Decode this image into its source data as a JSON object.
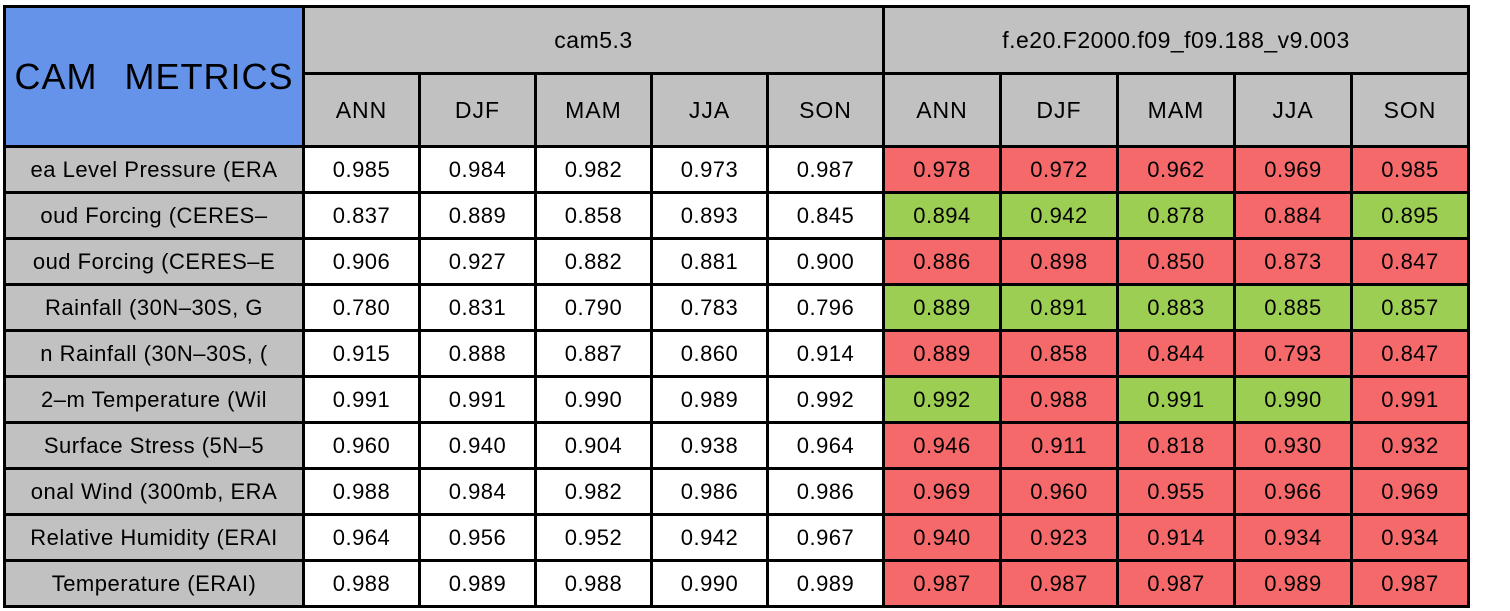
{
  "colors": {
    "blue": "#6593EA",
    "gray": "#C1C1C1",
    "red": "#F5696B",
    "green": "#9CCE53",
    "border": "#000000",
    "white": "#FFFFFF"
  },
  "chart_data": {
    "type": "table",
    "title": "CAM METRICS",
    "column_groups": [
      "cam5.3",
      "f.e20.F2000.f09_f09.188_v9.003"
    ],
    "season_columns": [
      "ANN",
      "DJF",
      "MAM",
      "JJA",
      "SON"
    ],
    "highlight_colors": {
      "red": "#F5696B",
      "green": "#9CCE53"
    },
    "rows": [
      {
        "label": "ea Level Pressure (ERA",
        "cam53": [
          "0.985",
          "0.984",
          "0.982",
          "0.973",
          "0.987"
        ],
        "exp": [
          {
            "v": "0.978",
            "c": "red"
          },
          {
            "v": "0.972",
            "c": "red"
          },
          {
            "v": "0.962",
            "c": "red"
          },
          {
            "v": "0.969",
            "c": "red"
          },
          {
            "v": "0.985",
            "c": "red"
          }
        ]
      },
      {
        "label": "oud Forcing (CERES–",
        "cam53": [
          "0.837",
          "0.889",
          "0.858",
          "0.893",
          "0.845"
        ],
        "exp": [
          {
            "v": "0.894",
            "c": "green"
          },
          {
            "v": "0.942",
            "c": "green"
          },
          {
            "v": "0.878",
            "c": "green"
          },
          {
            "v": "0.884",
            "c": "red"
          },
          {
            "v": "0.895",
            "c": "green"
          }
        ]
      },
      {
        "label": "oud Forcing (CERES–E",
        "cam53": [
          "0.906",
          "0.927",
          "0.882",
          "0.881",
          "0.900"
        ],
        "exp": [
          {
            "v": "0.886",
            "c": "red"
          },
          {
            "v": "0.898",
            "c": "red"
          },
          {
            "v": "0.850",
            "c": "red"
          },
          {
            "v": "0.873",
            "c": "red"
          },
          {
            "v": "0.847",
            "c": "red"
          }
        ]
      },
      {
        "label": "Rainfall (30N–30S, G",
        "cam53": [
          "0.780",
          "0.831",
          "0.790",
          "0.783",
          "0.796"
        ],
        "exp": [
          {
            "v": "0.889",
            "c": "green"
          },
          {
            "v": "0.891",
            "c": "green"
          },
          {
            "v": "0.883",
            "c": "green"
          },
          {
            "v": "0.885",
            "c": "green"
          },
          {
            "v": "0.857",
            "c": "green"
          }
        ]
      },
      {
        "label": "n Rainfall (30N–30S, (",
        "cam53": [
          "0.915",
          "0.888",
          "0.887",
          "0.860",
          "0.914"
        ],
        "exp": [
          {
            "v": "0.889",
            "c": "red"
          },
          {
            "v": "0.858",
            "c": "red"
          },
          {
            "v": "0.844",
            "c": "red"
          },
          {
            "v": "0.793",
            "c": "red"
          },
          {
            "v": "0.847",
            "c": "red"
          }
        ]
      },
      {
        "label": "2–m Temperature (Wil",
        "cam53": [
          "0.991",
          "0.991",
          "0.990",
          "0.989",
          "0.992"
        ],
        "exp": [
          {
            "v": "0.992",
            "c": "green"
          },
          {
            "v": "0.988",
            "c": "red"
          },
          {
            "v": "0.991",
            "c": "green"
          },
          {
            "v": "0.990",
            "c": "green"
          },
          {
            "v": "0.991",
            "c": "red"
          }
        ]
      },
      {
        "label": "Surface Stress (5N–5",
        "cam53": [
          "0.960",
          "0.940",
          "0.904",
          "0.938",
          "0.964"
        ],
        "exp": [
          {
            "v": "0.946",
            "c": "red"
          },
          {
            "v": "0.911",
            "c": "red"
          },
          {
            "v": "0.818",
            "c": "red"
          },
          {
            "v": "0.930",
            "c": "red"
          },
          {
            "v": "0.932",
            "c": "red"
          }
        ]
      },
      {
        "label": "onal Wind (300mb, ERA",
        "cam53": [
          "0.988",
          "0.984",
          "0.982",
          "0.986",
          "0.986"
        ],
        "exp": [
          {
            "v": "0.969",
            "c": "red"
          },
          {
            "v": "0.960",
            "c": "red"
          },
          {
            "v": "0.955",
            "c": "red"
          },
          {
            "v": "0.966",
            "c": "red"
          },
          {
            "v": "0.969",
            "c": "red"
          }
        ]
      },
      {
        "label": "Relative Humidity (ERAI",
        "cam53": [
          "0.964",
          "0.956",
          "0.952",
          "0.942",
          "0.967"
        ],
        "exp": [
          {
            "v": "0.940",
            "c": "red"
          },
          {
            "v": "0.923",
            "c": "red"
          },
          {
            "v": "0.914",
            "c": "red"
          },
          {
            "v": "0.934",
            "c": "red"
          },
          {
            "v": "0.934",
            "c": "red"
          }
        ]
      },
      {
        "label": "Temperature (ERAI)",
        "cam53": [
          "0.988",
          "0.989",
          "0.988",
          "0.990",
          "0.989"
        ],
        "exp": [
          {
            "v": "0.987",
            "c": "red"
          },
          {
            "v": "0.987",
            "c": "red"
          },
          {
            "v": "0.987",
            "c": "red"
          },
          {
            "v": "0.989",
            "c": "red"
          },
          {
            "v": "0.987",
            "c": "red"
          }
        ]
      }
    ]
  }
}
